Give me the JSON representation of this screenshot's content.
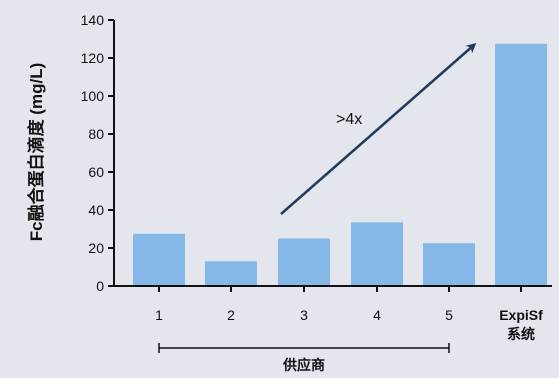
{
  "chart_data": {
    "type": "bar",
    "ylabel": "Fc融合蛋白滴度 (mg/L)",
    "xlabel": "",
    "ylim": [
      0,
      140
    ],
    "yticks": [
      0,
      20,
      40,
      60,
      80,
      100,
      120,
      140
    ],
    "categories": [
      [
        "1"
      ],
      [
        "2"
      ],
      [
        "3"
      ],
      [
        "4"
      ],
      [
        "5"
      ],
      [
        "ExpiSf",
        "系统"
      ]
    ],
    "values": [
      27.5,
      13,
      25,
      33.5,
      22.5,
      127.5
    ],
    "bar_color": "#85b8e6",
    "axis_color": "#111111",
    "arrow_color": "#1f3a5a",
    "annotation": ">4x",
    "group_label": "供应商",
    "grid": false,
    "legend": "none"
  }
}
